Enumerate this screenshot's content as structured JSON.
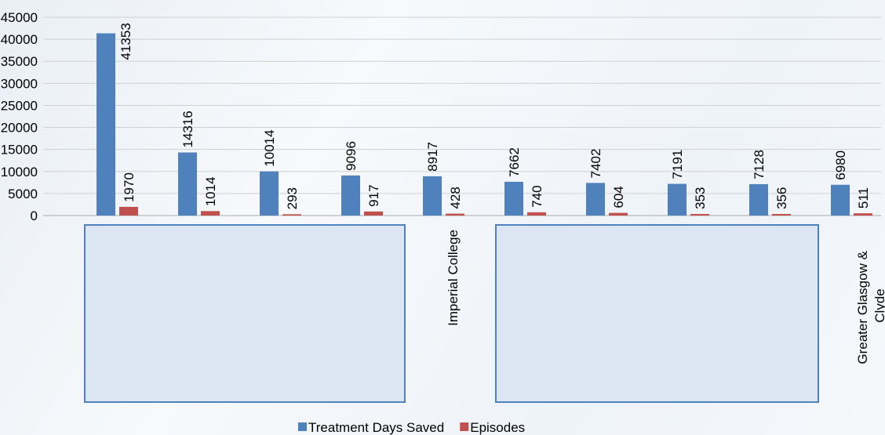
{
  "chart_data": {
    "type": "bar",
    "categories": [
      null,
      null,
      null,
      null,
      "Imperial College",
      null,
      null,
      null,
      null,
      "Greater Glasgow & Clyde"
    ],
    "series": [
      {
        "name": "Treatment Days Saved",
        "color": "#4f81bd",
        "values": [
          41353,
          14316,
          10014,
          9096,
          8917,
          7662,
          7402,
          7191,
          7128,
          6980
        ]
      },
      {
        "name": "Episodes",
        "color": "#c0504d",
        "values": [
          1970,
          1014,
          293,
          917,
          428,
          740,
          604,
          353,
          356,
          511
        ]
      }
    ],
    "ylim": [
      0,
      45000
    ],
    "yticks": [
      0,
      5000,
      10000,
      15000,
      20000,
      25000,
      30000,
      35000,
      40000,
      45000
    ],
    "grid": true,
    "legend": "bottom"
  }
}
